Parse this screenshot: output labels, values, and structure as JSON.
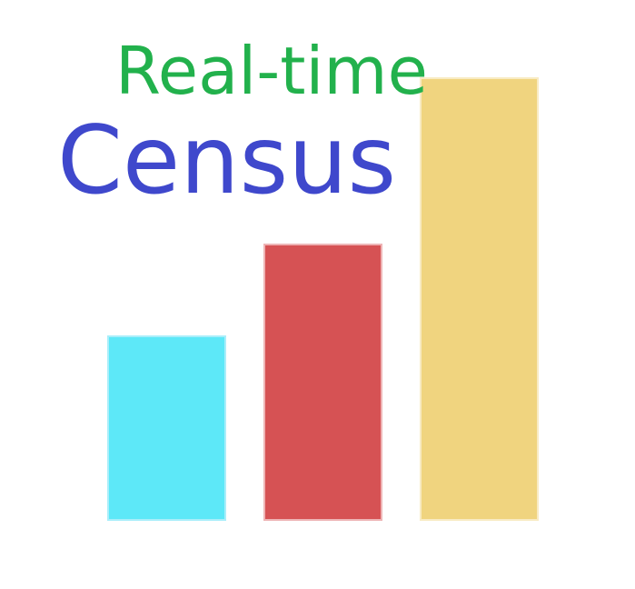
{
  "logo": {
    "line1": "Real-time",
    "line2": "Census",
    "colors": {
      "line1": "#22b14c",
      "line2": "#3f48cc",
      "bar_1": "#5de8f8",
      "bar_2": "#d65254",
      "bar_3": "#f0d47f"
    }
  }
}
